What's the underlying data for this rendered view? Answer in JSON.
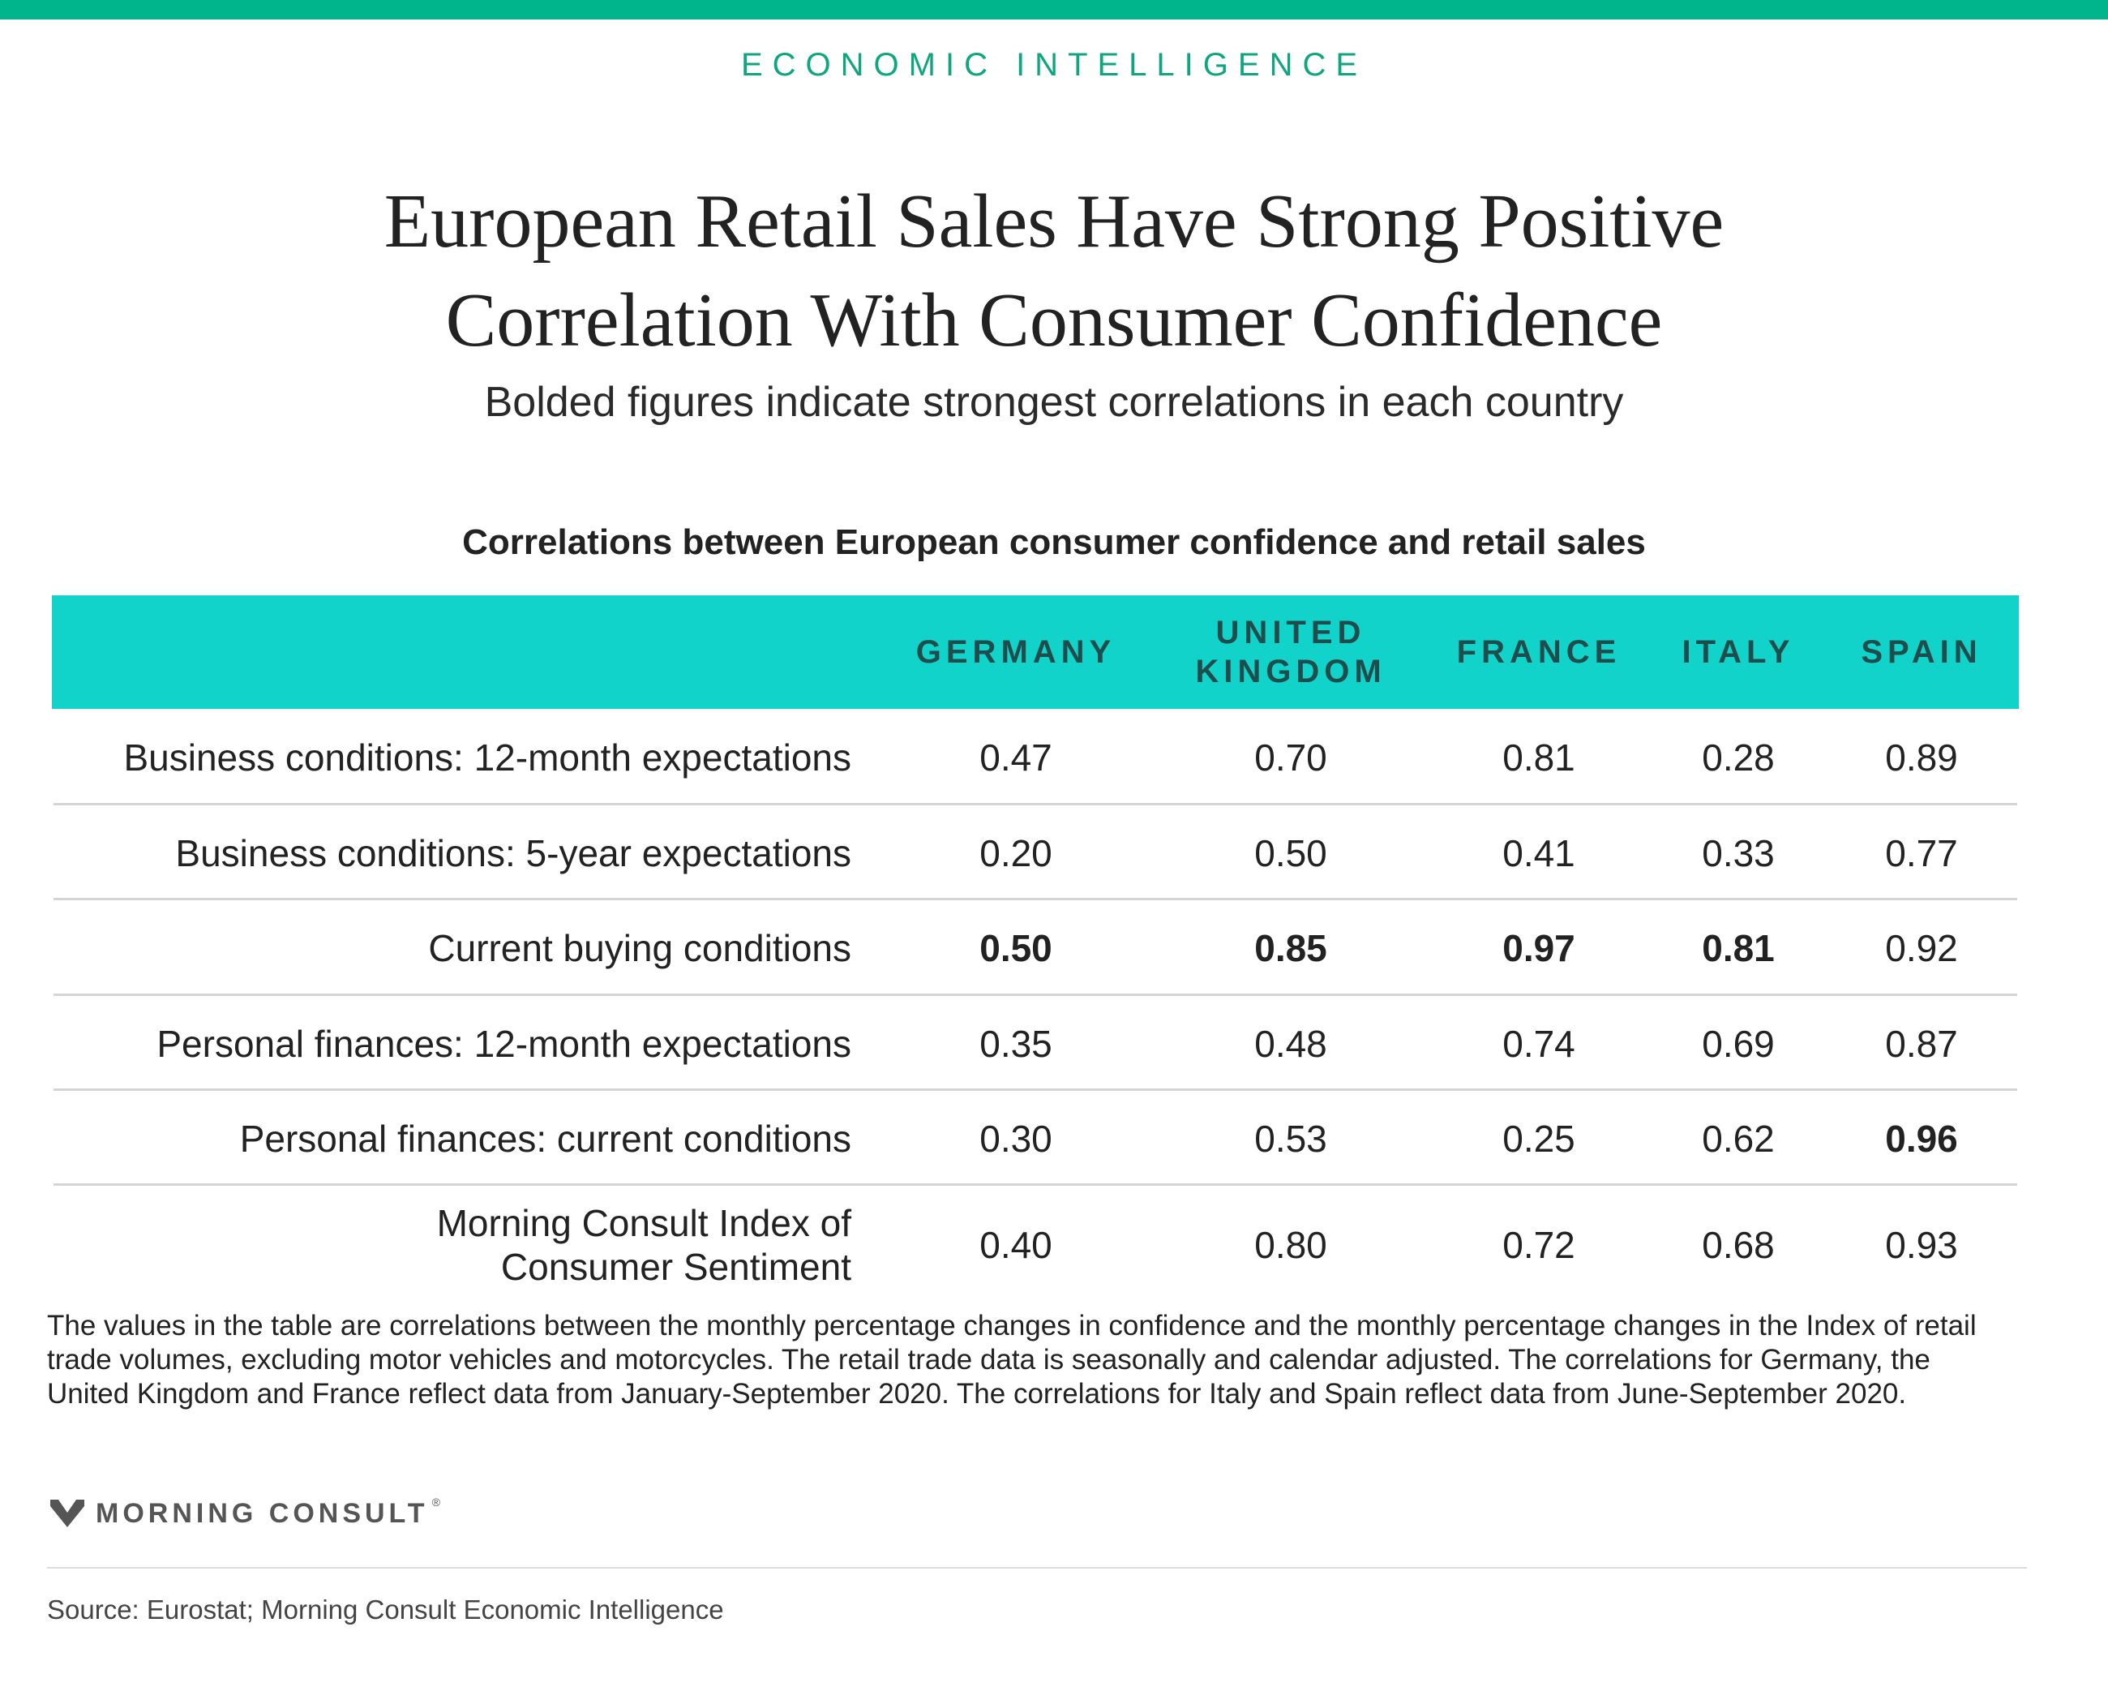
{
  "header": {
    "kicker": "ECONOMIC INTELLIGENCE",
    "title": "European Retail Sales Have Strong Positive Correlation With Consumer Confidence",
    "subtitle": "Bolded figures indicate strongest correlations in each country",
    "accent_color": "#00b48c"
  },
  "chart_data": {
    "type": "table",
    "title": "Correlations between European consumer confidence and retail sales",
    "header_color": "#12d3c9",
    "columns": [
      "GERMANY",
      "UNITED KINGDOM",
      "FRANCE",
      "ITALY",
      "SPAIN"
    ],
    "rows": [
      {
        "label": "Business conditions: 12-month expectations",
        "values": [
          "0.47",
          "0.70",
          "0.81",
          "0.28",
          "0.89"
        ],
        "bold": [
          false,
          false,
          false,
          false,
          false
        ]
      },
      {
        "label": "Business conditions: 5-year expectations",
        "values": [
          "0.20",
          "0.50",
          "0.41",
          "0.33",
          "0.77"
        ],
        "bold": [
          false,
          false,
          false,
          false,
          false
        ]
      },
      {
        "label": "Current buying conditions",
        "values": [
          "0.50",
          "0.85",
          "0.97",
          "0.81",
          "0.92"
        ],
        "bold": [
          true,
          true,
          true,
          true,
          false
        ]
      },
      {
        "label": "Personal finances: 12-month expectations",
        "values": [
          "0.35",
          "0.48",
          "0.74",
          "0.69",
          "0.87"
        ],
        "bold": [
          false,
          false,
          false,
          false,
          false
        ]
      },
      {
        "label": "Personal finances: current conditions",
        "values": [
          "0.30",
          "0.53",
          "0.25",
          "0.62",
          "0.96"
        ],
        "bold": [
          false,
          false,
          false,
          false,
          true
        ]
      },
      {
        "label": "Morning Consult Index of Consumer Sentiment",
        "values": [
          "0.40",
          "0.80",
          "0.72",
          "0.68",
          "0.93"
        ],
        "bold": [
          false,
          false,
          false,
          false,
          false
        ]
      }
    ]
  },
  "footer": {
    "note": "The values in the table are correlations between the monthly percentage changes in confidence and the monthly percentage changes in the Index of retail trade volumes, excluding motor vehicles and motorcycles. The retail trade data is seasonally and calendar adjusted. The correlations for Germany, the United Kingdom and France reflect data from January-September 2020. The correlations for Italy and Spain reflect data from June-September 2020.",
    "brand": "MORNING CONSULT",
    "brand_mark": "®",
    "brand_icon": "morning-consult-logo-icon",
    "source": "Source: Eurostat; Morning Consult Economic Intelligence"
  }
}
